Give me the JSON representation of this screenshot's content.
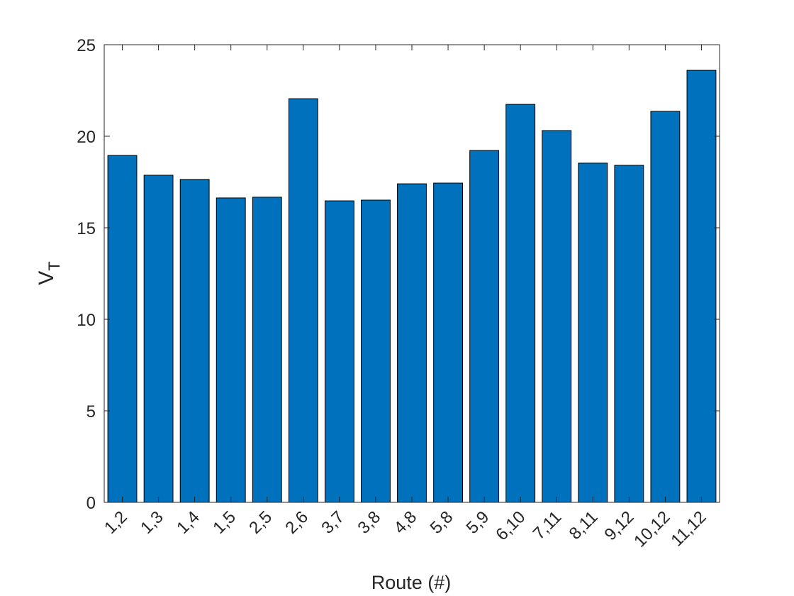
{
  "chart_data": {
    "type": "bar",
    "xlabel": "Route (#)",
    "ylabel": "V",
    "ylabel_subscript": "T",
    "categories": [
      "1,2",
      "1,3",
      "1,4",
      "1,5",
      "2,5",
      "2,6",
      "3,7",
      "3,8",
      "4,8",
      "5,8",
      "5,9",
      "6,10",
      "7,11",
      "8,11",
      "9,12",
      "10,12",
      "11,12"
    ],
    "values": [
      18.95,
      17.87,
      17.64,
      16.63,
      16.67,
      22.05,
      16.47,
      16.51,
      17.4,
      17.44,
      19.22,
      21.74,
      20.31,
      18.53,
      18.41,
      21.36,
      23.6
    ],
    "color": "#0072bd",
    "ylim": [
      0,
      25
    ],
    "yticks": [
      0,
      5,
      10,
      15,
      20,
      25
    ],
    "grid": false
  }
}
